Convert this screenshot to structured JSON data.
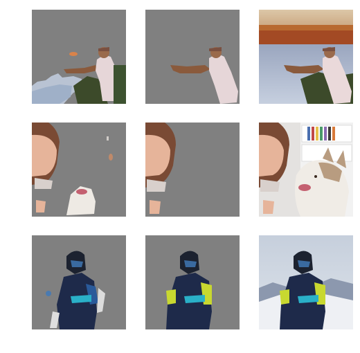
{
  "grid": {
    "columns": [
      "masked-prediction",
      "masked-ground-truth",
      "original-image"
    ],
    "rows": [
      {
        "subject": "fisherman"
      },
      {
        "subject": "girl-and-husky"
      },
      {
        "subject": "skier"
      }
    ]
  },
  "colors": {
    "mask_gray": "#808080",
    "background": "#ffffff"
  }
}
